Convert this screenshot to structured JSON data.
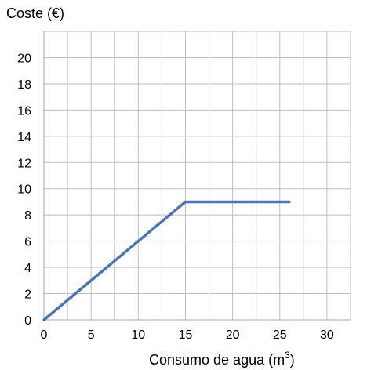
{
  "chart_data": {
    "type": "line",
    "title": "",
    "xlabel": "Consumo de agua (m",
    "xlabel_sup": "3",
    "xlabel_close": ")",
    "ylabel": "Coste (€)",
    "xlim": [
      0,
      32.5
    ],
    "ylim": [
      0,
      22
    ],
    "x_ticks": [
      0,
      5,
      10,
      15,
      20,
      25,
      30
    ],
    "y_ticks": [
      0,
      2,
      4,
      6,
      8,
      10,
      12,
      14,
      16,
      18,
      20
    ],
    "grid": true,
    "grid_step_x": 2.5,
    "grid_step_y": 2,
    "line_color": "#4a76b3",
    "grid_color": "#bfbfbf",
    "series": [
      {
        "x": [
          0,
          15,
          26
        ],
        "y": [
          0,
          9,
          9
        ]
      }
    ]
  }
}
